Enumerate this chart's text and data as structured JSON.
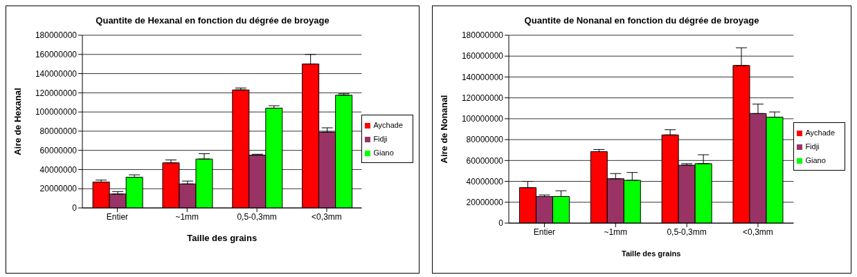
{
  "chart_data": [
    {
      "type": "bar",
      "title": "Quantite de Hexanal en fonction du dégrée de broyage",
      "xlabel": "Taille des grains",
      "ylabel": "Aire de Hexanal",
      "categories": [
        "Entier",
        "~1mm",
        "0,5-0,3mm",
        "<0,3mm"
      ],
      "series": [
        {
          "name": "Aychade",
          "color": "#ff0000",
          "values": [
            27000000,
            47000000,
            123000000,
            150000000
          ],
          "errors": [
            [
              27000000,
              29000000
            ],
            [
              47000000,
              50000000
            ],
            [
              123000000,
              125000000
            ],
            [
              150000000,
              160000000
            ]
          ]
        },
        {
          "name": "Fidji",
          "color": "#993366",
          "values": [
            14500000,
            25000000,
            55000000,
            79000000
          ],
          "errors": [
            [
              14500000,
              17000000
            ],
            [
              25000000,
              28000000
            ],
            [
              55000000,
              56000000
            ],
            [
              79000000,
              83500000
            ]
          ]
        },
        {
          "name": "Giano",
          "color": "#00ff00",
          "values": [
            32000000,
            51000000,
            104000000,
            117500000
          ],
          "errors": [
            [
              32000000,
              34500000
            ],
            [
              51000000,
              56500000
            ],
            [
              104000000,
              106500000
            ],
            [
              117500000,
              119000000
            ]
          ]
        }
      ],
      "ylim": [
        0,
        180000000
      ],
      "yticks": [
        0,
        20000000,
        40000000,
        60000000,
        80000000,
        100000000,
        120000000,
        140000000,
        160000000,
        180000000
      ],
      "grid": "y",
      "legend": "right"
    },
    {
      "type": "bar",
      "title": "Quantite de Nonanal en fonction du dégrée de broyage",
      "xlabel": "Taille des grains",
      "ylabel": "Aire de Nonanal",
      "categories": [
        "Entier",
        "~1mm",
        "0,5-0,3mm",
        "<0,3mm"
      ],
      "series": [
        {
          "name": "Aychade",
          "color": "#ff0000",
          "values": [
            34000000,
            68500000,
            84500000,
            151000000
          ],
          "errors": [
            [
              34000000,
              40000000
            ],
            [
              68500000,
              70500000
            ],
            [
              84500000,
              89500000
            ],
            [
              151000000,
              168000000
            ]
          ]
        },
        {
          "name": "Fidji",
          "color": "#993366",
          "values": [
            25500000,
            42500000,
            55500000,
            105000000
          ],
          "errors": [
            [
              25500000,
              27000000
            ],
            [
              42500000,
              47500000
            ],
            [
              55500000,
              57000000
            ],
            [
              105000000,
              114000000
            ]
          ]
        },
        {
          "name": "Giano",
          "color": "#00ff00",
          "values": [
            25500000,
            41000000,
            57000000,
            101500000
          ],
          "errors": [
            [
              25500000,
              31000000
            ],
            [
              41000000,
              48500000
            ],
            [
              57000000,
              65500000
            ],
            [
              101500000,
              106500000
            ]
          ]
        }
      ],
      "ylim": [
        0,
        180000000
      ],
      "yticks": [
        0,
        20000000,
        40000000,
        60000000,
        80000000,
        100000000,
        120000000,
        140000000,
        160000000,
        180000000
      ],
      "grid": "y",
      "legend": "right"
    }
  ]
}
